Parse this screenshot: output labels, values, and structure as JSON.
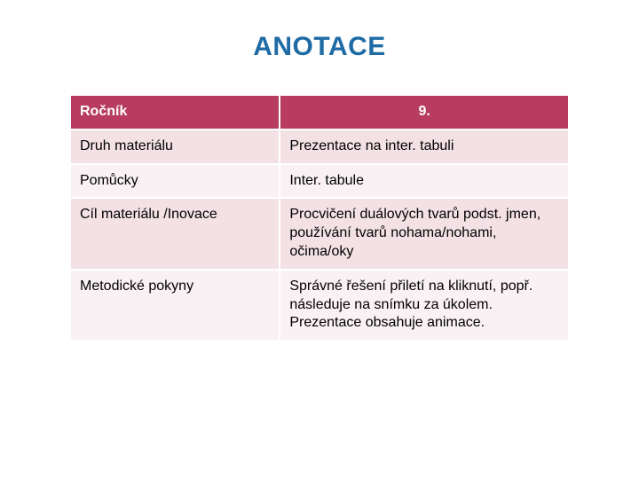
{
  "title": {
    "text": "ANOTACE",
    "color": "#1f6ba5",
    "fontsize": 30,
    "weight": "bold"
  },
  "table": {
    "header": {
      "left": "Ročník",
      "right": "9.",
      "bg": "#b73c5f",
      "color": "#ffffff",
      "fontsize": 16
    },
    "rows": [
      {
        "label": "Druh materiálu",
        "value": "Prezentace na inter. tabuli"
      },
      {
        "label": "Pomůcky",
        "value": "Inter. tabule"
      },
      {
        "label": "Cíl materiálu /Inovace",
        "value": "Procvičení duálových tvarů podst. jmen,  používání tvarů nohama/nohami, očima/oky"
      },
      {
        "label": "Metodické pokyny",
        "value": "Správné řešení  přiletí na kliknutí, popř. následuje  na snímku za úkolem. Prezentace obsahuje animace."
      }
    ],
    "row_bg_even": "#f3e1e5",
    "row_bg_odd": "#f9f1f3",
    "text_color": "#000000",
    "fontsize": 16,
    "col_widths": [
      "42%",
      "58%"
    ]
  },
  "background_color": "#ffffff"
}
